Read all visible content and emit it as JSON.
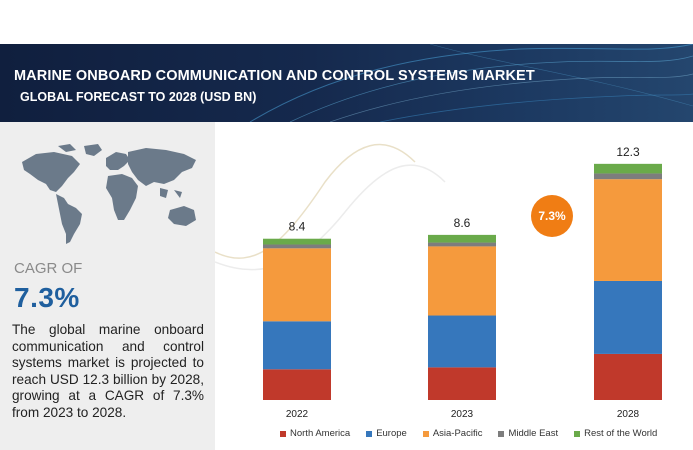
{
  "header": {
    "title": "MARINE ONBOARD COMMUNICATION AND CONTROL SYSTEMS MARKET",
    "subtitle": "GLOBAL FORECAST TO 2028 (USD BN)"
  },
  "left_panel": {
    "cagr_label": "CAGR OF",
    "cagr_value": "7.3%",
    "description": "The global marine onboard communication and control systems market is projected to reach  USD 12.3 billion by 2028, growing at a CAGR of 7.3% from 2023 to 2028.",
    "map_icon": "world-map-icon"
  },
  "cagr_bubble": {
    "label": "7.3%"
  },
  "colors": {
    "north_america": "#c0392b",
    "europe": "#3677bc",
    "asia_pacific": "#f59a3d",
    "middle_east": "#7d7d7d",
    "rest_of_world": "#6aaa4a",
    "bubble": "#f07d14",
    "banner": "#15294d"
  },
  "chart_data": {
    "type": "bar",
    "stacked": true,
    "categories": [
      "2022",
      "2023",
      "2028"
    ],
    "totals": [
      "8.4",
      "8.6",
      "12.3"
    ],
    "series": [
      {
        "name": "North America",
        "color": "#c0392b",
        "values": [
          1.6,
          1.7,
          2.4
        ]
      },
      {
        "name": "Europe",
        "color": "#3677bc",
        "values": [
          2.5,
          2.7,
          3.8
        ]
      },
      {
        "name": "Asia-Pacific",
        "color": "#f59a3d",
        "values": [
          3.8,
          3.6,
          5.3
        ]
      },
      {
        "name": "Middle East",
        "color": "#7d7d7d",
        "values": [
          0.2,
          0.2,
          0.3
        ]
      },
      {
        "name": "Rest of the World",
        "color": "#6aaa4a",
        "values": [
          0.3,
          0.4,
          0.5
        ]
      }
    ],
    "title": "",
    "xlabel": "",
    "ylabel": "",
    "grid": false,
    "legend_position": "bottom"
  }
}
